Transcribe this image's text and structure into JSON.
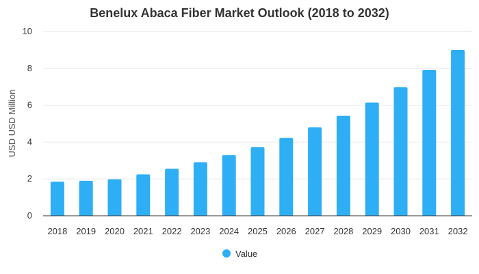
{
  "chart_data": {
    "type": "bar",
    "title": "Benelux Abaca Fiber Market Outlook (2018 to 2032)",
    "xlabel": "",
    "ylabel": "USD USD Million",
    "categories": [
      "2018",
      "2019",
      "2020",
      "2021",
      "2022",
      "2023",
      "2024",
      "2025",
      "2026",
      "2027",
      "2028",
      "2029",
      "2030",
      "2031",
      "2032"
    ],
    "series": [
      {
        "name": "Value",
        "values": [
          1.85,
          1.9,
          1.98,
          2.25,
          2.55,
          2.9,
          3.3,
          3.72,
          4.23,
          4.8,
          5.43,
          6.15,
          6.98,
          7.92,
          9.0
        ],
        "color": "#2eaef5"
      }
    ],
    "ylim": [
      0,
      10
    ],
    "yticks": [
      0,
      2,
      4,
      6,
      8,
      10
    ],
    "grid": true,
    "legend_position": "bottom-center"
  }
}
